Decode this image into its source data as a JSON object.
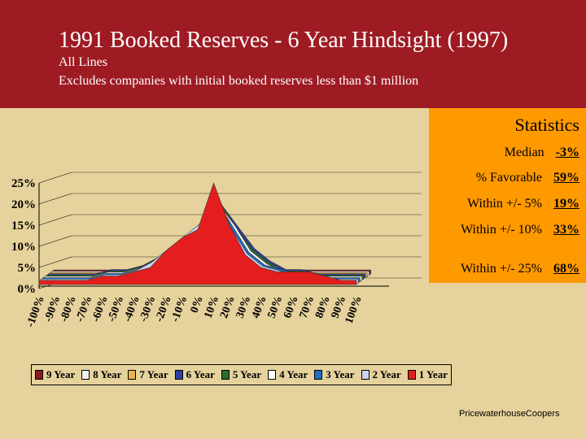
{
  "header": {
    "title": "1991 Booked Reserves - 6 Year Hindsight (1997)",
    "subtitle1": "All Lines",
    "subtitle2": "Excludes companies with initial booked reserves less than $1 million"
  },
  "stats": {
    "title": "Statistics",
    "rows": [
      {
        "label": "Median",
        "value": "-3%"
      },
      {
        "label": "% Favorable",
        "value": "59%"
      },
      {
        "label": "Within +/- 5%",
        "value": "19%"
      },
      {
        "label": "Within +/- 10%",
        "value": "33%"
      },
      {
        "label": "Within +/- 25%",
        "value": "68%"
      }
    ]
  },
  "footer": "PricewaterhouseCoopers",
  "chart_data": {
    "type": "area",
    "title": "",
    "xlabel": "",
    "ylabel": "",
    "ylim": [
      0,
      25
    ],
    "y_ticks": [
      "0%",
      "5%",
      "10%",
      "15%",
      "20%",
      "25%"
    ],
    "categories": [
      "-100%",
      "-90%",
      "-80%",
      "-70%",
      "-60%",
      "-50%",
      "-40%",
      "-30%",
      "-20%",
      "-10%",
      "0%",
      "10%",
      "20%",
      "30%",
      "40%",
      "50%",
      "60%",
      "70%",
      "80%",
      "90%",
      "100%"
    ],
    "series": [
      {
        "name": "9 Year",
        "color": "#8B1A1A",
        "values": [
          1,
          1,
          1,
          1,
          1,
          1,
          1,
          1,
          1,
          2,
          2,
          3,
          4,
          2,
          1,
          1,
          1,
          1,
          1,
          1,
          1
        ]
      },
      {
        "name": "8 Year",
        "color": "#F2F2F2",
        "values": [
          1,
          1,
          1,
          1,
          1,
          1,
          1,
          1,
          2,
          2,
          3,
          4,
          5,
          3,
          1,
          1,
          1,
          1,
          1,
          1,
          1
        ]
      },
      {
        "name": "7 Year",
        "color": "#E8B34A",
        "values": [
          1,
          1,
          1,
          1,
          1,
          1,
          1,
          1,
          2,
          3,
          4,
          5,
          6,
          3,
          1,
          1,
          1,
          1,
          1,
          1,
          1
        ]
      },
      {
        "name": "6 Year",
        "color": "#2E3F99",
        "values": [
          1,
          1,
          1,
          1,
          2,
          2,
          3,
          5,
          8,
          10,
          12,
          17,
          12,
          7,
          4,
          2,
          2,
          1,
          1,
          1,
          1
        ]
      },
      {
        "name": "5 Year",
        "color": "#2E6B2E",
        "values": [
          1,
          1,
          1,
          1,
          2,
          2,
          3,
          5,
          8,
          10,
          13,
          18,
          12,
          7,
          4,
          2,
          2,
          1,
          1,
          1,
          1
        ]
      },
      {
        "name": "4 Year",
        "color": "#FFFFFF",
        "values": [
          1,
          1,
          1,
          1,
          2,
          2,
          3,
          5,
          8,
          10,
          13,
          18,
          13,
          7,
          4,
          2,
          2,
          1,
          1,
          1,
          1
        ]
      },
      {
        "name": "3 Year",
        "color": "#1F6FC7",
        "values": [
          1,
          1,
          1,
          1,
          2,
          2,
          3,
          5,
          8,
          11,
          13,
          19,
          13,
          7,
          4,
          3,
          2,
          1,
          1,
          1,
          1
        ]
      },
      {
        "name": "2 Year",
        "color": "#C9D3F0",
        "values": [
          1,
          1,
          1,
          1,
          2,
          2,
          3,
          5,
          8,
          11,
          14,
          20,
          13,
          7,
          4,
          3,
          2,
          2,
          1,
          1,
          1
        ]
      },
      {
        "name": "1 Year",
        "color": "#E41E1E",
        "values": [
          1,
          1,
          1,
          1,
          2,
          2,
          3,
          4,
          8,
          11,
          13,
          24,
          14,
          7,
          4,
          3,
          3,
          3,
          2,
          1,
          1
        ]
      }
    ],
    "legend_position": "bottom"
  }
}
